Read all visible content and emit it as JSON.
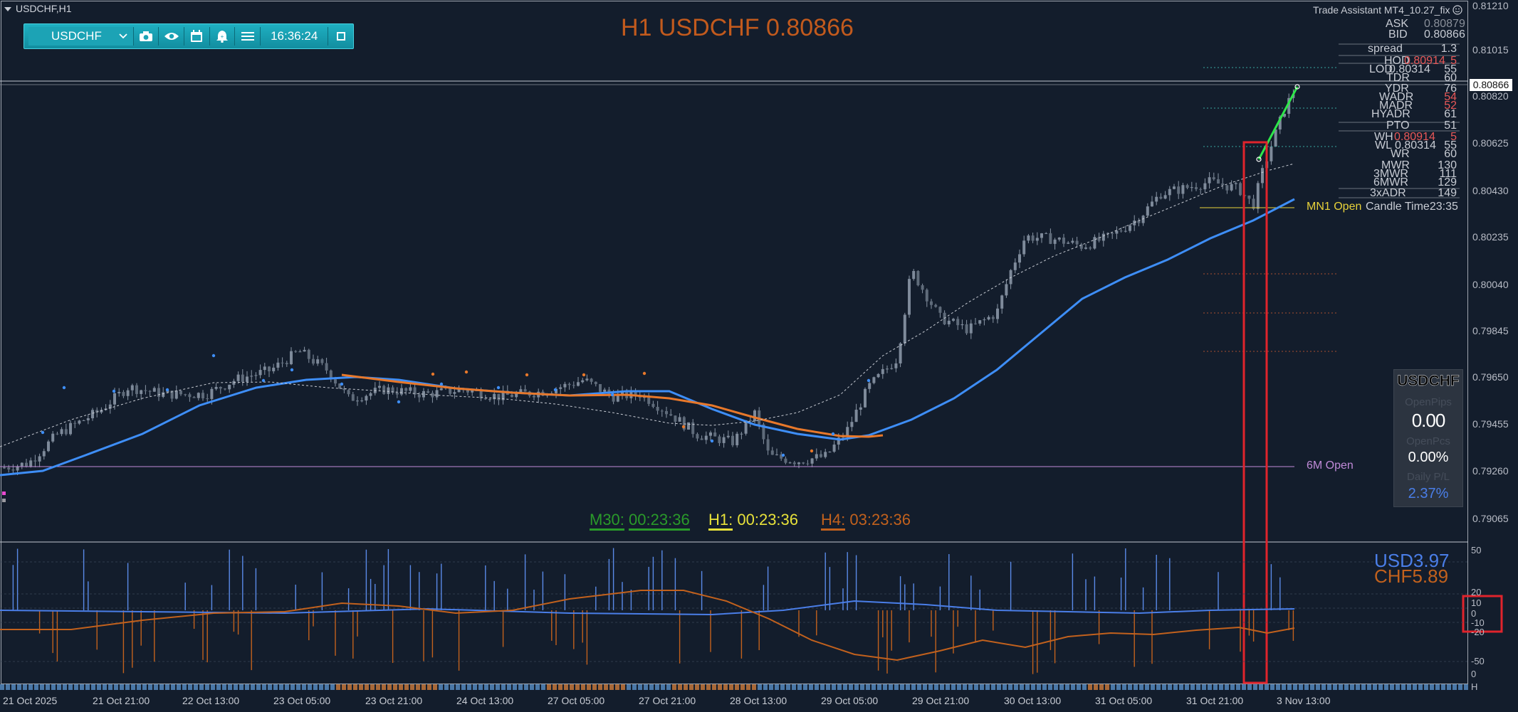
{
  "window": {
    "title": "USDCHF,H1"
  },
  "toolbar": {
    "symbol": "USDCHF",
    "time": "16:36:24",
    "icons": [
      "camera-icon",
      "eye-icon",
      "calendar-icon",
      "alert-bell-icon",
      "menu-icon",
      "window-icon"
    ]
  },
  "header": {
    "title": "H1 USDCHF 0.80866",
    "assistant": "Trade Assistant MT4_10.27_fix"
  },
  "info": {
    "ask_label": "ASK",
    "ask_value": "0.80879",
    "bid_label": "BID",
    "bid_value": "0.80866",
    "spread_label": "spread",
    "spread_value": "1.3",
    "hod_label": "HOD",
    "hod_price": "0.80914",
    "hod_value": "5",
    "lod_label": "LOD",
    "lod_price": "0.80314",
    "lod_value": "55",
    "tdr_label": "TDR",
    "tdr_value": "60",
    "ydr_label": "YDR",
    "ydr_value": "76",
    "wadr_label": "WADR",
    "wadr_value": "54",
    "madr_label": "MADR",
    "madr_value": "52",
    "hyadr_label": "HYADR",
    "hyadr_value": "61",
    "pto_label": "PTO",
    "pto_value": "51",
    "wh_label": "WH",
    "wh_price": "0.80914",
    "wh_value": "5",
    "wl_label": "WL",
    "wl_price": "0.80314",
    "wl_value": "55",
    "wr_label": "WR",
    "wr_value": "60",
    "mwr_label": "MWR",
    "mwr_value": "130",
    "3mwr_label": "3MWR",
    "3mwr_value": "111",
    "6mwr_label": "6MWR",
    "6mwr_value": "129",
    "3xadr_label": "3xADR",
    "3xadr_value": "149"
  },
  "price_axis": [
    "0.81210",
    "0.81015",
    "0.80820",
    "0.80625",
    "0.80430",
    "0.80235",
    "0.80040",
    "0.79845",
    "0.79650",
    "0.79455",
    "0.79260",
    "0.79065"
  ],
  "current_price": "0.80866",
  "time_axis": [
    "21 Oct 2025",
    "21 Oct 21:00",
    "22 Oct 13:00",
    "23 Oct 05:00",
    "23 Oct 21:00",
    "24 Oct 13:00",
    "27 Oct 05:00",
    "27 Oct 21:00",
    "28 Oct 13:00",
    "29 Oct 05:00",
    "29 Oct 21:00",
    "30 Oct 13:00",
    "31 Oct 05:00",
    "31 Oct 21:00",
    "3 Nov 13:00"
  ],
  "timers": {
    "m30_label": "M30:",
    "m30_value": "00:23:36",
    "h1_label": "H1:",
    "h1_value": "00:23:36",
    "h4_label": "H4:",
    "h4_value": "03:23:36"
  },
  "levels": {
    "six_month_open": "6M Open",
    "mn1_open": "MN1 Open",
    "candle_time": "Candle Time23:35"
  },
  "panel": {
    "symbol": "USDCHF",
    "open_pips_label": "OpenPips",
    "open_pips": "0.00",
    "open_pcs_label": "OpenPcs",
    "open_pcs": "0.00%",
    "daily_pl_label": "Daily P/L",
    "daily_pl": "2.37%"
  },
  "oscillator": {
    "usd_label": "USD",
    "usd_value": "3.97",
    "chf_label": "CHF",
    "chf_value": "5.89",
    "axis": [
      "50",
      "20",
      "10",
      "0",
      "-10",
      "-20",
      "-50",
      "0"
    ],
    "axis_bottom": "H"
  },
  "colors": {
    "bg": "#131d2c",
    "bull": "#8a96a6",
    "ma_blue": "#3e8ef7",
    "ma_orange": "#e8782a",
    "red_box": "#e0242c",
    "green": "#2ee64a"
  }
}
